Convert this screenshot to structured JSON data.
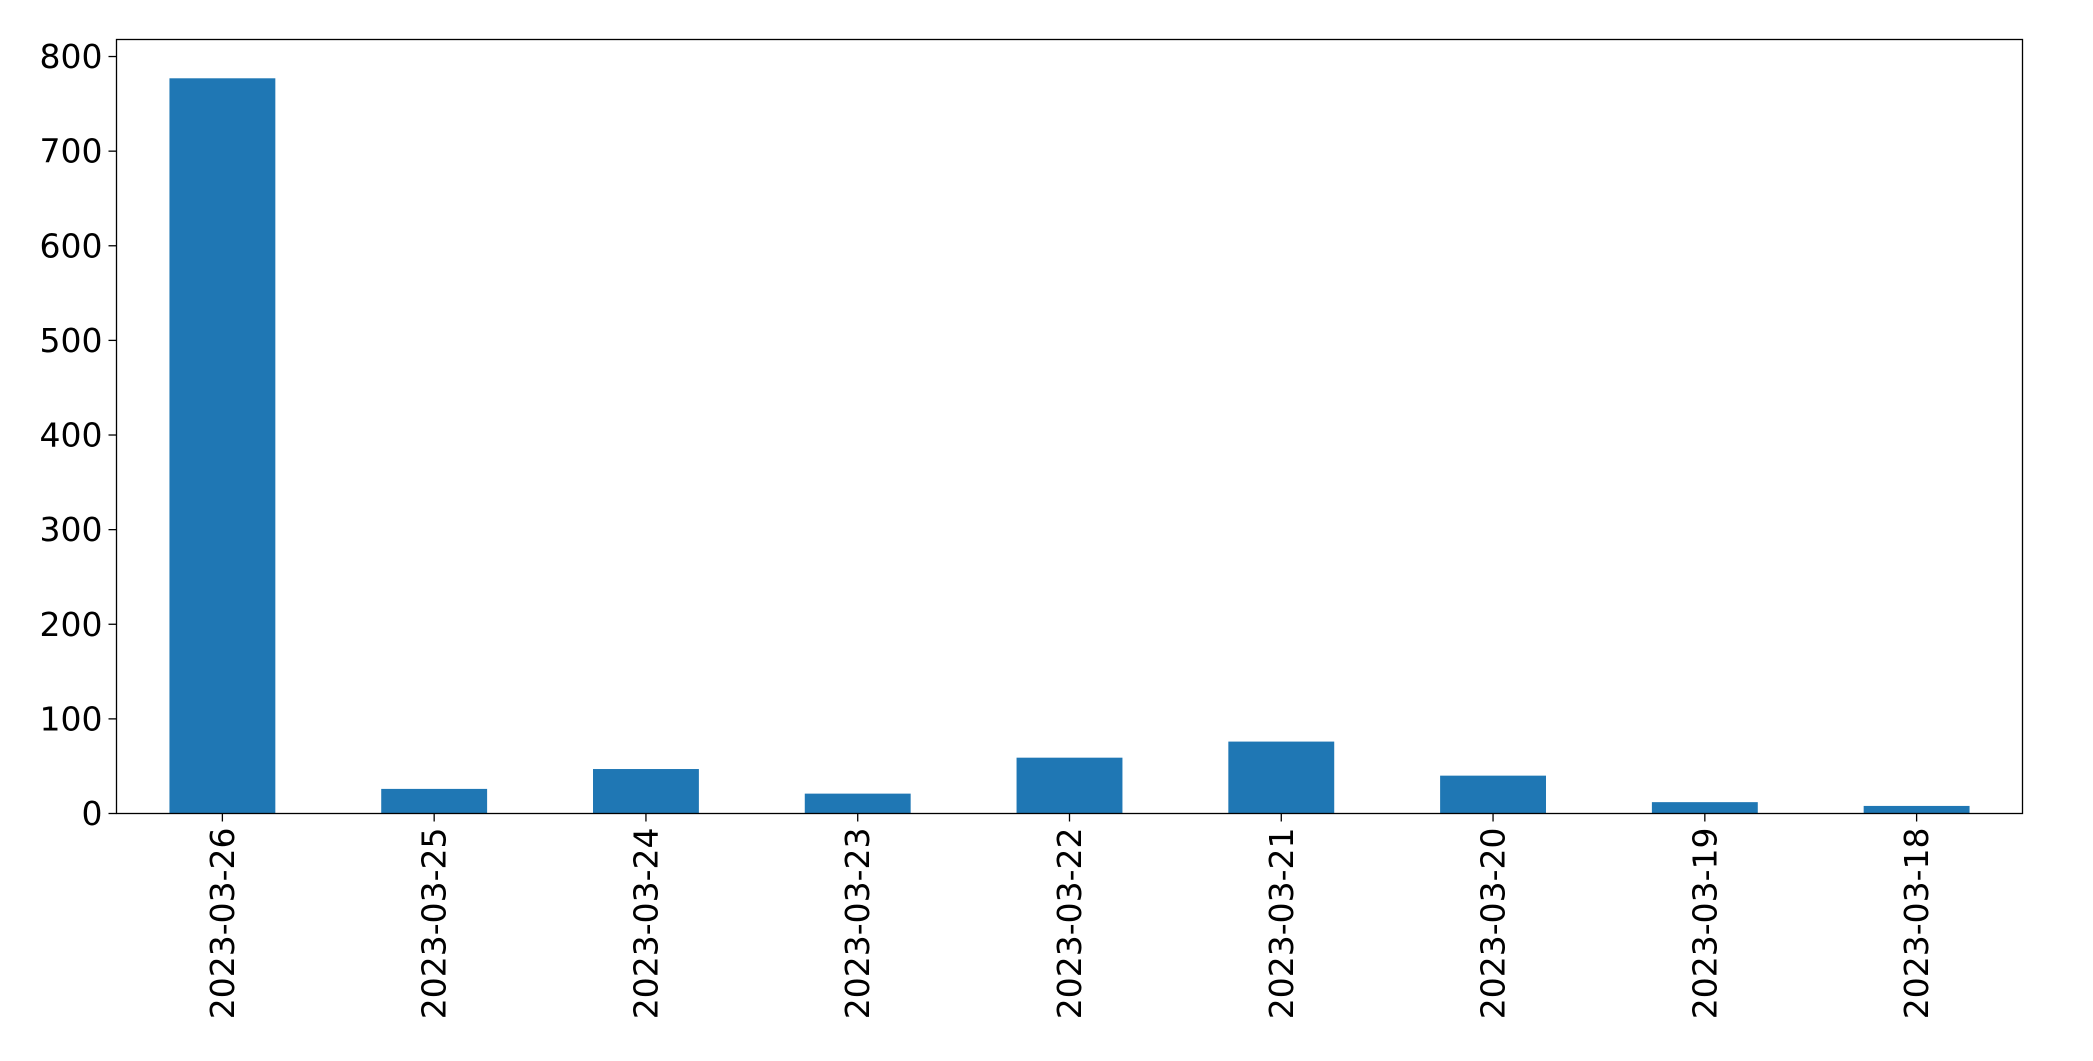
{
  "chart_data": {
    "type": "bar",
    "title": "",
    "xlabel": "",
    "ylabel": "",
    "categories": [
      "2023-03-26",
      "2023-03-25",
      "2023-03-24",
      "2023-03-23",
      "2023-03-22",
      "2023-03-21",
      "2023-03-20",
      "2023-03-19",
      "2023-03-18"
    ],
    "values": [
      777,
      26,
      47,
      21,
      59,
      76,
      40,
      12,
      8
    ],
    "ylim": [
      0,
      818
    ],
    "yticks": [
      0,
      100,
      200,
      300,
      400,
      500,
      600,
      700,
      800
    ],
    "bar_color": "#1f77b4",
    "grid": false,
    "legend": "none"
  }
}
